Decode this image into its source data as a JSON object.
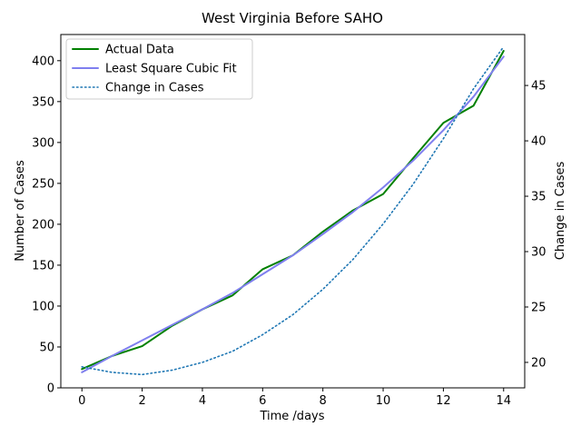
{
  "chart_data": {
    "type": "line",
    "title": "West Virginia Before SAHO",
    "xlabel": "Time /days",
    "ylabel": "Number of Cases",
    "y2label": "Change in Cases",
    "xlim": [
      -0.7,
      14.7
    ],
    "ylim": [
      0,
      432
    ],
    "y2lim": [
      17.7,
      49.6
    ],
    "x_ticks": [
      0,
      2,
      4,
      6,
      8,
      10,
      12,
      14
    ],
    "y_ticks": [
      0,
      50,
      100,
      150,
      200,
      250,
      300,
      350,
      400
    ],
    "y2_ticks": [
      20,
      25,
      30,
      35,
      40,
      45
    ],
    "legend_position": "top-left",
    "x": [
      0,
      1,
      2,
      3,
      4,
      5,
      6,
      7,
      8,
      9,
      10,
      11,
      12,
      13,
      14
    ],
    "series": [
      {
        "name": "Actual Data",
        "axis": "left",
        "color": "#008000",
        "style": "solid",
        "values": [
          23,
          39,
          51,
          76,
          96,
          113,
          145,
          162,
          191,
          217,
          237,
          281,
          324,
          345,
          412
        ]
      },
      {
        "name": "Least Square Cubic Fit",
        "axis": "left",
        "color": "#7f7fef",
        "style": "solid",
        "values": [
          19,
          39,
          58,
          77,
          96,
          116,
          139,
          162,
          188,
          215,
          245,
          278,
          315,
          356,
          405
        ]
      },
      {
        "name": "Change in Cases",
        "axis": "right",
        "color": "#1f77b4",
        "style": "dotted",
        "values": [
          19.6,
          19.1,
          18.9,
          19.3,
          20.0,
          21.0,
          22.5,
          24.3,
          26.6,
          29.3,
          32.5,
          36.1,
          40.2,
          44.7,
          48.5
        ]
      }
    ]
  }
}
